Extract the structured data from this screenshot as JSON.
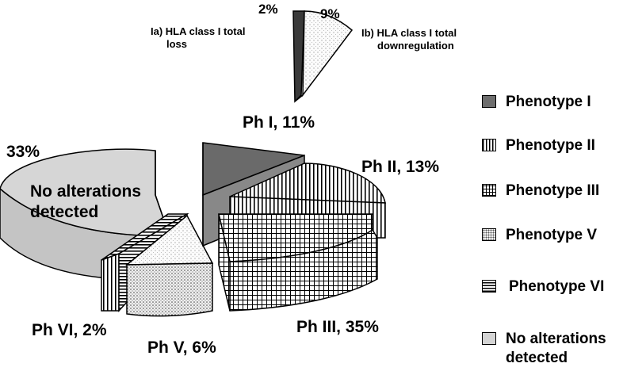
{
  "chart_data": [
    {
      "type": "pie",
      "categories": [
        "Ph I",
        "Ph II",
        "Ph III",
        "Ph V",
        "Ph VI",
        "No alterations detected"
      ],
      "values": [
        11,
        13,
        35,
        6,
        2,
        33
      ],
      "data_labels": [
        "Ph I, 11%",
        "Ph II, 13%",
        "Ph III, 35%",
        "Ph V, 6%",
        "Ph VI, 2%",
        "33%"
      ],
      "inner_label": "No alterations detected",
      "style": "3d-exploded"
    },
    {
      "type": "pie",
      "categories": [
        "Ia) HLA class I total loss",
        "Ib) HLA class I total downregulation"
      ],
      "values": [
        2,
        9
      ],
      "data_labels": [
        "2%",
        "9%"
      ],
      "style": "exploded-sub-pie"
    }
  ],
  "labels": {
    "ph1": "Ph I, 11%",
    "ph2": "Ph II, 13%",
    "ph3": "Ph III, 35%",
    "ph5": "Ph V, 6%",
    "ph6": "Ph VI, 2%",
    "none_pct": "33%",
    "none_inner_line1": "No alterations",
    "none_inner_line2": "detected",
    "sub_loss_pct": "2%",
    "sub_down_pct": "9%",
    "sub_loss_line1": "Ia) HLA class I total",
    "sub_loss_line2": "loss",
    "sub_down_line1": "Ib) HLA class I total",
    "sub_down_line2": "downregulation"
  },
  "legend": {
    "position": "right",
    "items": [
      {
        "label": "Phenotype I",
        "pattern": "dark-gray"
      },
      {
        "label": "Phenotype II",
        "pattern": "vertical-stripes"
      },
      {
        "label": "Phenotype III",
        "pattern": "grid"
      },
      {
        "label": "Phenotype V",
        "pattern": "dots"
      },
      {
        "label": "Phenotype VI",
        "pattern": "horizontal-stripes"
      },
      {
        "label": "No alterations\ndetected",
        "pattern": "light-gray"
      }
    ]
  },
  "colors": {
    "ph1": "#6e6e6e",
    "none": "#d4d4d4",
    "none_side": "#c4c4c4",
    "dots_bg": "#f2f2f2"
  }
}
